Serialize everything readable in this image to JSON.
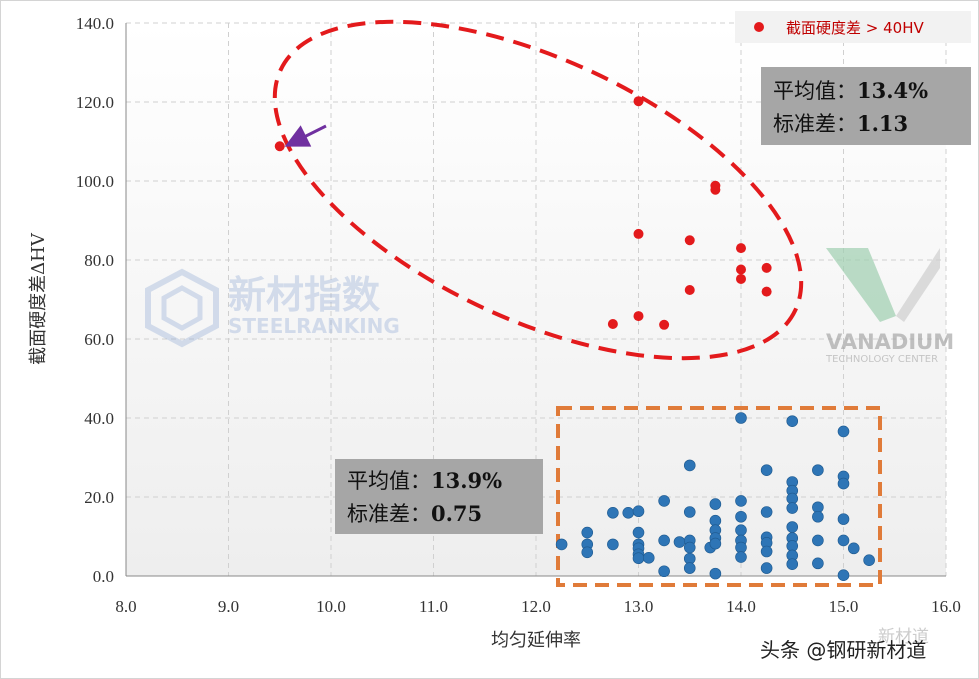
{
  "chart_data": {
    "type": "scatter",
    "xlabel": "均匀延伸率",
    "ylabel": "截面硬度差ΔHV",
    "xlim": [
      8.0,
      16.0
    ],
    "ylim": [
      0.0,
      140.0
    ],
    "xticks": [
      "8.0",
      "9.0",
      "10.0",
      "11.0",
      "12.0",
      "13.0",
      "14.0",
      "15.0",
      "16.0"
    ],
    "yticks": [
      "0.0",
      "20.0",
      "40.0",
      "60.0",
      "80.0",
      "100.0",
      "120.0",
      "140.0"
    ],
    "grid": true,
    "legend": {
      "position": "top-right",
      "label": "截面硬度差 > 40HV",
      "color": "#e31a1c"
    },
    "series": [
      {
        "name": "截面硬度差 > 40HV",
        "color": "#e31a1c",
        "points": [
          [
            9.5,
            108.8
          ],
          [
            13.0,
            120.2
          ],
          [
            13.75,
            98.8
          ],
          [
            13.75,
            97.8
          ],
          [
            13.0,
            86.6
          ],
          [
            13.5,
            85.0
          ],
          [
            14.0,
            83.0
          ],
          [
            14.0,
            77.6
          ],
          [
            14.25,
            78.0
          ],
          [
            14.0,
            75.2
          ],
          [
            13.5,
            72.4
          ],
          [
            14.25,
            72.0
          ],
          [
            13.0,
            65.8
          ],
          [
            12.75,
            63.8
          ],
          [
            13.25,
            63.6
          ]
        ]
      },
      {
        "name": "",
        "color": "#2e75b6",
        "points": [
          [
            12.25,
            8.0
          ],
          [
            12.5,
            11.0
          ],
          [
            12.5,
            8.0
          ],
          [
            12.5,
            6.0
          ],
          [
            12.75,
            16.0
          ],
          [
            12.75,
            8.0
          ],
          [
            12.9,
            16.0
          ],
          [
            13.0,
            16.4
          ],
          [
            13.0,
            11.0
          ],
          [
            13.0,
            8.0
          ],
          [
            13.0,
            7.0
          ],
          [
            13.0,
            5.5
          ],
          [
            13.0,
            4.5
          ],
          [
            13.1,
            4.6
          ],
          [
            13.25,
            19.0
          ],
          [
            13.25,
            9.0
          ],
          [
            13.25,
            1.2
          ],
          [
            13.4,
            8.6
          ],
          [
            13.5,
            28.0
          ],
          [
            13.5,
            16.2
          ],
          [
            13.5,
            9.0
          ],
          [
            13.5,
            7.2
          ],
          [
            13.5,
            4.4
          ],
          [
            13.5,
            2.0
          ],
          [
            13.7,
            7.2
          ],
          [
            13.75,
            18.2
          ],
          [
            13.75,
            14.0
          ],
          [
            13.75,
            11.6
          ],
          [
            13.75,
            9.6
          ],
          [
            13.75,
            8.2
          ],
          [
            13.75,
            0.6
          ],
          [
            14.0,
            40.0
          ],
          [
            14.0,
            19.0
          ],
          [
            14.0,
            15.0
          ],
          [
            14.0,
            11.6
          ],
          [
            14.0,
            9.0
          ],
          [
            14.0,
            7.2
          ],
          [
            14.0,
            4.8
          ],
          [
            14.25,
            26.8
          ],
          [
            14.25,
            16.2
          ],
          [
            14.25,
            9.8
          ],
          [
            14.25,
            8.4
          ],
          [
            14.25,
            6.2
          ],
          [
            14.25,
            2.0
          ],
          [
            14.5,
            39.2
          ],
          [
            14.5,
            23.8
          ],
          [
            14.5,
            21.6
          ],
          [
            14.5,
            19.6
          ],
          [
            14.5,
            17.2
          ],
          [
            14.5,
            12.4
          ],
          [
            14.5,
            9.6
          ],
          [
            14.5,
            7.6
          ],
          [
            14.5,
            5.2
          ],
          [
            14.5,
            3.0
          ],
          [
            14.75,
            26.8
          ],
          [
            14.75,
            17.4
          ],
          [
            14.75,
            15.0
          ],
          [
            14.75,
            9.0
          ],
          [
            14.75,
            3.2
          ],
          [
            15.0,
            36.6
          ],
          [
            15.0,
            25.2
          ],
          [
            15.0,
            23.4
          ],
          [
            15.0,
            14.4
          ],
          [
            15.0,
            9.0
          ],
          [
            15.0,
            0.2
          ],
          [
            15.1,
            7.0
          ],
          [
            15.25,
            4.0
          ]
        ]
      }
    ],
    "annotations": [
      {
        "id": "upper",
        "line1_label": "平均值：",
        "line1_value": "13.4%",
        "line2_label": "标准差：",
        "line2_value": "1.13"
      },
      {
        "id": "lower",
        "line1_label": "平均值：",
        "line1_value": "13.9%",
        "line2_label": "标准差：",
        "line2_value": "0.75"
      }
    ],
    "arrow_target": [
      9.5,
      108.8
    ]
  },
  "watermarks": {
    "brand_cn": "新材指数",
    "brand_en": "STEELRANKING",
    "vanadium": "VANADIUM",
    "vanadium_sub": "TECHNOLOGY CENTER"
  },
  "footer": {
    "credit": "头条 @钢研新材道",
    "faint": "新材道"
  },
  "colors": {
    "red_ellipse": "#e31a1c",
    "orange_box": "#e07b39",
    "arrow": "#7030a0",
    "stat_box": "#a6a6a6",
    "grid": "#d0d0d0"
  }
}
